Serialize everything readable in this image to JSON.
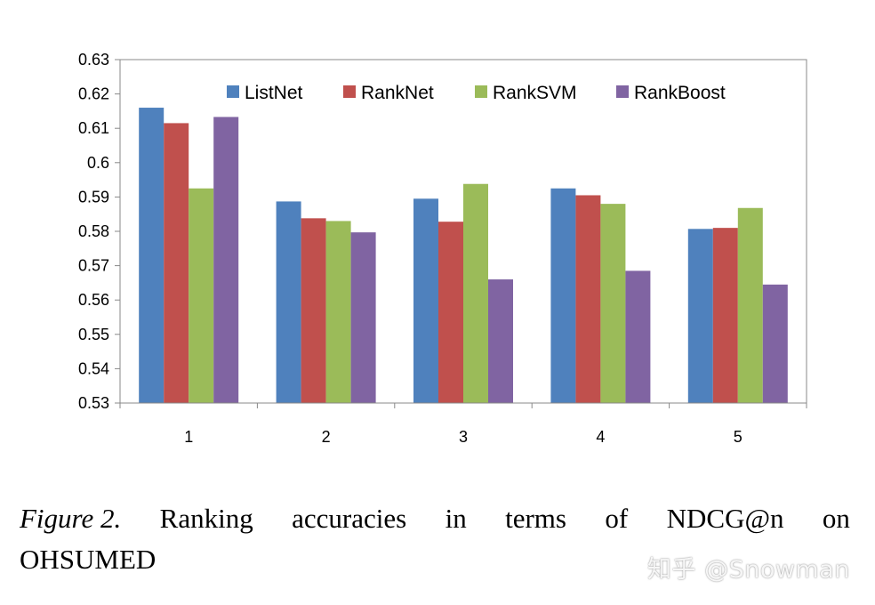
{
  "chart_data": {
    "type": "bar",
    "categories": [
      "1",
      "2",
      "3",
      "4",
      "5"
    ],
    "series": [
      {
        "name": "ListNet",
        "color": "#4F81BD",
        "values": [
          0.616,
          0.5887,
          0.5895,
          0.5925,
          0.5807
        ]
      },
      {
        "name": "RankNet",
        "color": "#C0504D",
        "values": [
          0.6115,
          0.5838,
          0.5828,
          0.5905,
          0.581
        ]
      },
      {
        "name": "RankSVM",
        "color": "#9BBB59",
        "values": [
          0.5925,
          0.583,
          0.5938,
          0.588,
          0.5868
        ]
      },
      {
        "name": "RankBoost",
        "color": "#8064A2",
        "values": [
          0.6133,
          0.5797,
          0.566,
          0.5685,
          0.5645
        ]
      }
    ],
    "ylim": [
      0.53,
      0.63
    ],
    "yticks": [
      "0.53",
      "0.54",
      "0.55",
      "0.56",
      "0.57",
      "0.58",
      "0.59",
      "0.6",
      "0.61",
      "0.62",
      "0.63"
    ],
    "grid": false,
    "legend_position": "top"
  },
  "caption": {
    "label": "Figure 2.",
    "words": [
      "Ranking",
      "accuracies",
      "in",
      "terms",
      "of",
      "NDCG@n",
      "on"
    ],
    "line2": "OHSUMED"
  },
  "watermark": "知乎 @Snowman"
}
